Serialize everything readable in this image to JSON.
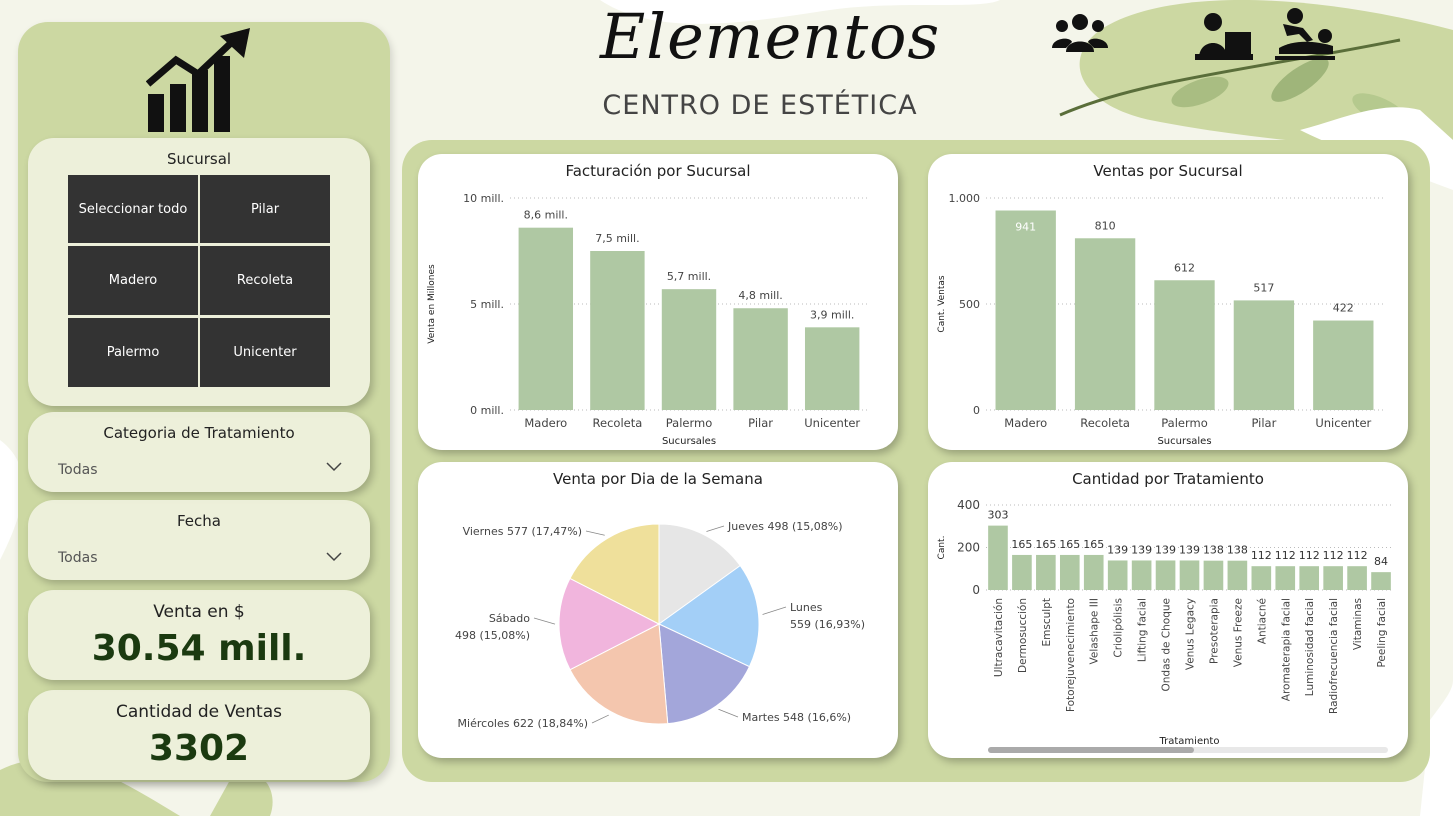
{
  "brand": {
    "title": "Elementos",
    "subtitle": "CENTRO DE ESTÉTICA"
  },
  "header_icons": [
    "people-group-icon",
    "receptionist-icon",
    "massage-icon"
  ],
  "logo_icon": "growth-chart-icon",
  "sucursal_slicer": {
    "title": "Sucursal",
    "options": [
      "Seleccionar todo",
      "Pilar",
      "Madero",
      "Recoleta",
      "Palermo",
      "Unicenter"
    ]
  },
  "categoria_filter": {
    "title": "Categoria de Tratamiento",
    "value": "Todas"
  },
  "fecha_filter": {
    "title": "Fecha",
    "value": "Todas"
  },
  "kpi_venta": {
    "label": "Venta en $",
    "value": "30.54 mill."
  },
  "kpi_cantidad": {
    "label": "Cantidad de Ventas",
    "value": "3302"
  },
  "colors": {
    "bar": "#afc8a3",
    "panel": "#ccd8a2",
    "kpi_value": "#1b3a10"
  },
  "chart_data": [
    {
      "type": "bar",
      "title": "Facturación por Sucursal",
      "categories": [
        "Madero",
        "Recoleta",
        "Palermo",
        "Pilar",
        "Unicenter"
      ],
      "values": [
        8.6,
        7.5,
        5.7,
        4.8,
        3.9
      ],
      "data_labels": [
        "8,6 mill.",
        "7,5 mill.",
        "5,7 mill.",
        "4,8 mill.",
        "3,9 mill."
      ],
      "xlabel": "Sucursales",
      "ylabel": "Venta en Millones",
      "ylim": [
        0,
        10
      ],
      "yticks": [
        0,
        5,
        10
      ],
      "ytick_labels": [
        "0 mill.",
        "5 mill.",
        "10 mill."
      ],
      "grid": true
    },
    {
      "type": "bar",
      "title": "Ventas por Sucursal",
      "categories": [
        "Madero",
        "Recoleta",
        "Palermo",
        "Pilar",
        "Unicenter"
      ],
      "values": [
        941,
        810,
        612,
        517,
        422
      ],
      "data_labels": [
        "941",
        "810",
        "612",
        "517",
        "422"
      ],
      "xlabel": "Sucursales",
      "ylabel": "Cant. Ventas",
      "ylim": [
        0,
        1000
      ],
      "yticks": [
        0,
        500,
        1000
      ],
      "ytick_labels": [
        "0",
        "500",
        "1.000"
      ],
      "grid": true
    },
    {
      "type": "pie",
      "title": "Venta por Dia de la Semana",
      "slices": [
        {
          "label": "Jueves",
          "value": 498,
          "pct": "15,08%",
          "text": "Jueves 498 (15,08%)",
          "color": "#e6e6e6"
        },
        {
          "label": "Lunes",
          "value": 559,
          "pct": "16,93%",
          "text": "Lunes",
          "text2": "559 (16,93%)",
          "color": "#a3cff7"
        },
        {
          "label": "Martes",
          "value": 548,
          "pct": "16,6%",
          "text": "Martes 548 (16,6%)",
          "color": "#a3a6da"
        },
        {
          "label": "Miércoles",
          "value": 622,
          "pct": "18,84%",
          "text": "Miércoles 622 (18,84%)",
          "color": "#f4c6ae"
        },
        {
          "label": "Sábado",
          "value": 498,
          "pct": "15,08%",
          "text": "Sábado",
          "text2": "498 (15,08%)",
          "color": "#f1b5dd"
        },
        {
          "label": "Viernes",
          "value": 577,
          "pct": "17,47%",
          "text": "Viernes 577 (17,47%)",
          "color": "#efe09b"
        }
      ]
    },
    {
      "type": "bar",
      "title": "Cantidad por Tratamiento",
      "categories": [
        "Ultracavitación",
        "Dermosucción",
        "Emsculpt",
        "Fotorejuvenecimiento",
        "Velashape III",
        "Criolipólisis",
        "Lifting facial",
        "Ondas de Choque",
        "Venus Legacy",
        "Presoterapia",
        "Venus Freeze",
        "Antiacné",
        "Aromaterapia facial",
        "Luminosidad facial",
        "Radiofrecuencia facial",
        "Vitaminas",
        "Peeling facial"
      ],
      "values": [
        303,
        165,
        165,
        165,
        165,
        139,
        139,
        139,
        139,
        138,
        138,
        112,
        112,
        112,
        112,
        112,
        84
      ],
      "xlabel": "Tratamiento",
      "ylabel": "Cant.",
      "ylim": [
        0,
        400
      ],
      "yticks": [
        0,
        200,
        400
      ],
      "ytick_labels": [
        "0",
        "200",
        "400"
      ],
      "grid": true
    }
  ]
}
